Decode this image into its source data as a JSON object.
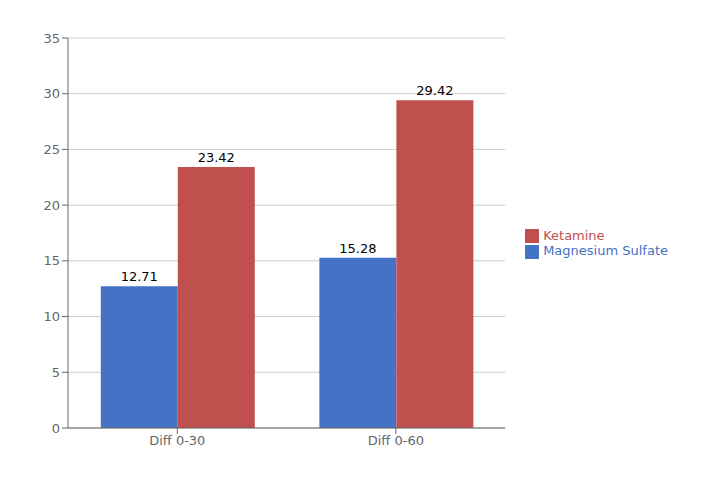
{
  "chart_data": {
    "type": "bar",
    "categories": [
      "Diff 0-30",
      "Diff 0-60"
    ],
    "series": [
      {
        "name": "Magnesium Sulfate",
        "color": "#4472C4",
        "values": [
          12.71,
          15.28
        ]
      },
      {
        "name": "Ketamine",
        "color": "#C0504D",
        "values": [
          23.42,
          29.42
        ]
      }
    ],
    "ylim": [
      0,
      35
    ],
    "yticks": [
      0,
      5,
      10,
      15,
      20,
      25,
      30,
      35
    ],
    "grid": true,
    "legend": "right",
    "data_labels": true
  }
}
